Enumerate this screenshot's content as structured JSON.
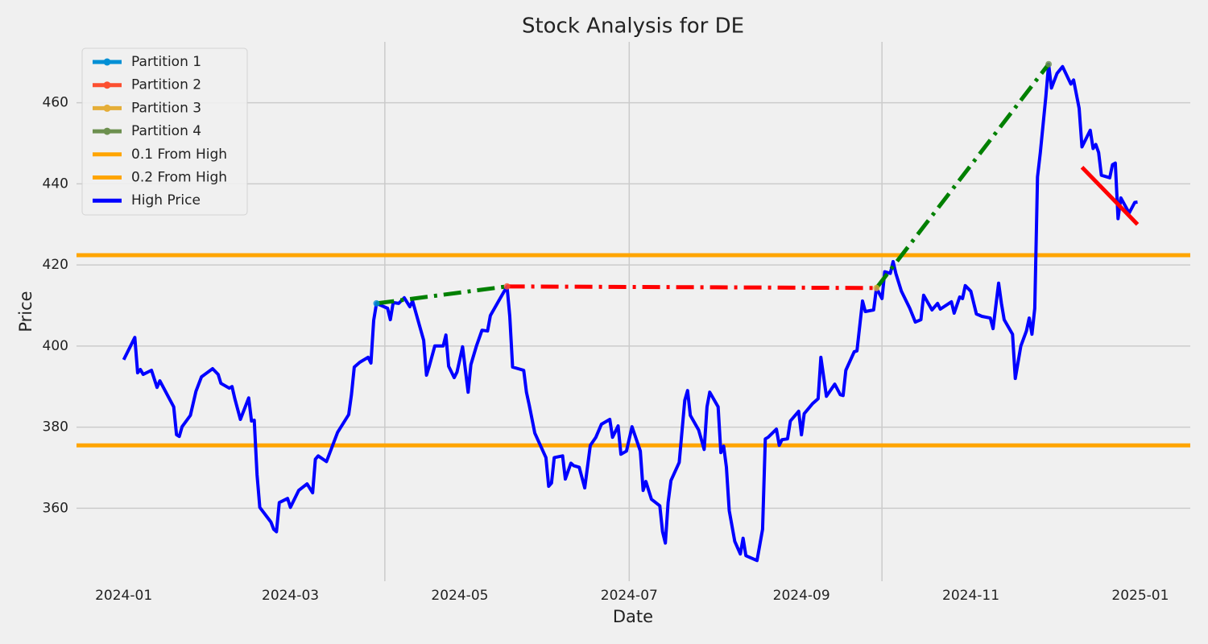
{
  "chart_data": {
    "type": "line",
    "title": "Stock Analysis for DE",
    "x_label": "Date",
    "y_label": "Price",
    "xlim": [
      "2023-12-15",
      "2025-01-19"
    ],
    "xticks": [
      {
        "value": "2024-01-01",
        "label": "2024-01"
      },
      {
        "value": "2024-03-01",
        "label": "2024-03"
      },
      {
        "value": "2024-05-01",
        "label": "2024-05"
      },
      {
        "value": "2024-07-01",
        "label": "2024-07"
      },
      {
        "value": "2024-09-01",
        "label": "2024-09"
      },
      {
        "value": "2024-11-01",
        "label": "2024-11"
      },
      {
        "value": "2025-01-01",
        "label": "2025-01"
      }
    ],
    "ylim": [
      342,
      475
    ],
    "yticks": [
      360,
      380,
      400,
      420,
      440,
      460
    ],
    "grid": true,
    "vlines": [
      "2024-04-04",
      "2024-07-01",
      "2024-09-30"
    ],
    "vline_color": "#cbcbcb",
    "legend": "upper left",
    "series": [
      {
        "name": "Partition 1",
        "color": "#008fd5",
        "style": "marker",
        "x": [
          "2024-04-01"
        ],
        "values": [
          410.5
        ]
      },
      {
        "name": "Partition 2",
        "color": "#fc4f30",
        "style": "marker",
        "x": [
          "2024-05-18"
        ],
        "values": [
          414.7
        ]
      },
      {
        "name": "Partition 3",
        "color": "#e5ae38",
        "style": "marker",
        "x": [
          "2024-09-28"
        ],
        "values": [
          414.3
        ]
      },
      {
        "name": "Partition 4",
        "color": "#6d904f",
        "style": "marker",
        "x": [
          "2024-11-29"
        ],
        "values": [
          469.5
        ]
      },
      {
        "name": "0.1 From High",
        "color": "#ffa500",
        "style": "hline",
        "values": [
          422.4
        ]
      },
      {
        "name": "0.2 From High",
        "color": "#ffa500",
        "style": "hline",
        "values": [
          375.5
        ]
      },
      {
        "name": "High Price",
        "color": "#0000ff",
        "style": "line",
        "x": [
          "2024-01-01",
          "2024-01-05",
          "2024-01-06",
          "2024-01-07",
          "2024-01-08",
          "2024-01-11",
          "2024-01-13",
          "2024-01-14",
          "2024-01-19",
          "2024-01-20",
          "2024-01-21",
          "2024-01-22",
          "2024-01-25",
          "2024-01-27",
          "2024-01-29",
          "2024-02-02",
          "2024-02-04",
          "2024-02-05",
          "2024-02-08",
          "2024-02-09",
          "2024-02-10",
          "2024-02-12",
          "2024-02-15",
          "2024-02-16",
          "2024-02-17",
          "2024-02-18",
          "2024-02-19",
          "2024-02-23",
          "2024-02-24",
          "2024-02-25",
          "2024-02-26",
          "2024-02-29",
          "2024-03-01",
          "2024-03-04",
          "2024-03-07",
          "2024-03-09",
          "2024-03-10",
          "2024-03-11",
          "2024-03-14",
          "2024-03-18",
          "2024-03-22",
          "2024-03-23",
          "2024-03-24",
          "2024-03-26",
          "2024-03-29",
          "2024-03-30",
          "2024-03-31",
          "2024-04-01",
          "2024-04-03",
          "2024-04-05",
          "2024-04-06",
          "2024-04-07",
          "2024-04-09",
          "2024-04-11",
          "2024-04-13",
          "2024-04-14",
          "2024-04-18",
          "2024-04-19",
          "2024-04-20",
          "2024-04-22",
          "2024-04-25",
          "2024-04-26",
          "2024-04-27",
          "2024-04-29",
          "2024-04-30",
          "2024-05-02",
          "2024-05-04",
          "2024-05-05",
          "2024-05-07",
          "2024-05-09",
          "2024-05-11",
          "2024-05-12",
          "2024-05-15",
          "2024-05-18",
          "2024-05-19",
          "2024-05-20",
          "2024-05-24",
          "2024-05-25",
          "2024-05-26",
          "2024-05-28",
          "2024-06-01",
          "2024-06-02",
          "2024-06-03",
          "2024-06-04",
          "2024-06-07",
          "2024-06-08",
          "2024-06-10",
          "2024-06-11",
          "2024-06-13",
          "2024-06-15",
          "2024-06-17",
          "2024-06-19",
          "2024-06-21",
          "2024-06-24",
          "2024-06-25",
          "2024-06-27",
          "2024-06-28",
          "2024-06-30",
          "2024-07-02",
          "2024-07-05",
          "2024-07-06",
          "2024-07-07",
          "2024-07-09",
          "2024-07-12",
          "2024-07-13",
          "2024-07-14",
          "2024-07-15",
          "2024-07-16",
          "2024-07-19",
          "2024-07-20",
          "2024-07-21",
          "2024-07-22",
          "2024-07-23",
          "2024-07-26",
          "2024-07-28",
          "2024-07-29",
          "2024-07-30",
          "2024-08-02",
          "2024-08-03",
          "2024-08-04",
          "2024-08-05",
          "2024-08-06",
          "2024-08-08",
          "2024-08-10",
          "2024-08-11",
          "2024-08-12",
          "2024-08-16",
          "2024-08-18",
          "2024-08-19",
          "2024-08-20",
          "2024-08-23",
          "2024-08-24",
          "2024-08-25",
          "2024-08-27",
          "2024-08-28",
          "2024-08-31",
          "2024-09-01",
          "2024-09-02",
          "2024-09-05",
          "2024-09-07",
          "2024-09-08",
          "2024-09-10",
          "2024-09-13",
          "2024-09-15",
          "2024-09-16",
          "2024-09-17",
          "2024-09-20",
          "2024-09-21",
          "2024-09-23",
          "2024-09-24",
          "2024-09-27",
          "2024-09-28",
          "2024-09-30",
          "2024-10-01",
          "2024-10-03",
          "2024-10-04",
          "2024-10-05",
          "2024-10-07",
          "2024-10-10",
          "2024-10-12",
          "2024-10-14",
          "2024-10-15",
          "2024-10-18",
          "2024-10-20",
          "2024-10-21",
          "2024-10-25",
          "2024-10-26",
          "2024-10-28",
          "2024-10-29",
          "2024-10-30",
          "2024-11-01",
          "2024-11-03",
          "2024-11-05",
          "2024-11-08",
          "2024-11-09",
          "2024-11-11",
          "2024-11-12",
          "2024-11-13",
          "2024-11-16",
          "2024-11-17",
          "2024-11-19",
          "2024-11-21",
          "2024-11-22",
          "2024-11-23",
          "2024-11-24",
          "2024-11-25",
          "2024-11-26",
          "2024-11-28",
          "2024-11-29",
          "2024-11-30",
          "2024-12-02",
          "2024-12-04",
          "2024-12-07",
          "2024-12-08",
          "2024-12-10",
          "2024-12-11",
          "2024-12-14",
          "2024-12-15",
          "2024-12-16",
          "2024-12-17",
          "2024-12-18",
          "2024-12-21",
          "2024-12-22",
          "2024-12-23",
          "2024-12-24",
          "2024-12-25",
          "2024-12-28",
          "2024-12-30",
          "2024-12-31"
        ],
        "values": [
          396.6,
          402.1,
          393.4,
          394.2,
          393.0,
          394.0,
          389.8,
          391.4,
          385.0,
          378.1,
          377.7,
          380.1,
          382.9,
          388.8,
          392.4,
          394.4,
          393.0,
          390.8,
          389.6,
          390.0,
          387.0,
          381.9,
          387.2,
          381.5,
          381.7,
          368.2,
          360.2,
          356.6,
          354.8,
          354.2,
          361.4,
          362.4,
          360.2,
          364.4,
          366.0,
          363.8,
          372.1,
          372.9,
          371.5,
          378.7,
          383.1,
          388.0,
          394.8,
          396.0,
          397.2,
          395.8,
          406.3,
          410.5,
          409.9,
          409.3,
          406.5,
          410.7,
          410.5,
          411.9,
          409.7,
          411.1,
          401.4,
          392.8,
          395.0,
          400.0,
          400.0,
          402.7,
          395.0,
          392.2,
          393.6,
          399.8,
          388.6,
          395.4,
          400.0,
          403.9,
          403.7,
          407.5,
          411.1,
          414.7,
          407.3,
          394.8,
          394.0,
          388.6,
          385.4,
          378.5,
          372.5,
          365.4,
          366.2,
          372.5,
          372.9,
          367.2,
          371.1,
          370.5,
          370.1,
          365.0,
          375.5,
          377.5,
          380.7,
          381.9,
          377.5,
          380.3,
          373.3,
          374.1,
          380.1,
          374.1,
          364.4,
          366.6,
          362.2,
          360.6,
          354.2,
          351.4,
          361.4,
          366.8,
          371.3,
          379.1,
          386.6,
          389.0,
          382.9,
          379.3,
          374.5,
          385.0,
          388.6,
          385.0,
          373.7,
          375.3,
          370.1,
          359.4,
          351.8,
          348.7,
          352.6,
          348.3,
          347.1,
          354.8,
          377.1,
          377.5,
          379.5,
          375.5,
          376.9,
          377.1,
          381.5,
          383.9,
          378.1,
          383.3,
          385.8,
          387.0,
          397.2,
          387.6,
          390.6,
          388.0,
          387.8,
          394.0,
          398.6,
          398.8,
          411.1,
          408.5,
          408.9,
          414.3,
          411.7,
          418.3,
          417.9,
          420.8,
          417.9,
          413.5,
          409.3,
          405.9,
          406.5,
          412.5,
          408.9,
          410.5,
          409.1,
          410.9,
          408.1,
          412.1,
          411.7,
          414.9,
          413.5,
          407.9,
          407.3,
          406.9,
          404.3,
          415.5,
          410.5,
          406.5,
          402.9,
          392.0,
          400.0,
          403.7,
          406.9,
          402.9,
          409.3,
          441.7,
          447.7,
          461.6,
          469.5,
          463.6,
          467.2,
          468.9,
          464.6,
          465.6,
          458.6,
          449.1,
          453.2,
          448.7,
          449.7,
          447.7,
          442.1,
          441.5,
          444.7,
          445.1,
          431.4,
          436.5,
          432.8,
          435.4,
          435.5
        ]
      }
    ],
    "trend_lines": [
      {
        "color": "#008000",
        "style": "dashdot",
        "x": [
          "2024-04-01",
          "2024-05-18"
        ],
        "values": [
          410.5,
          414.7
        ]
      },
      {
        "color": "#ff0000",
        "style": "dashdot",
        "x": [
          "2024-05-18",
          "2024-09-28"
        ],
        "values": [
          414.7,
          414.3
        ]
      },
      {
        "color": "#008000",
        "style": "dashdot",
        "x": [
          "2024-09-28",
          "2024-11-29"
        ],
        "values": [
          414.3,
          469.5
        ]
      },
      {
        "color": "#ff0000",
        "style": "solid",
        "x": [
          "2024-12-11",
          "2024-12-31"
        ],
        "values": [
          444.1,
          430.0
        ]
      }
    ]
  }
}
